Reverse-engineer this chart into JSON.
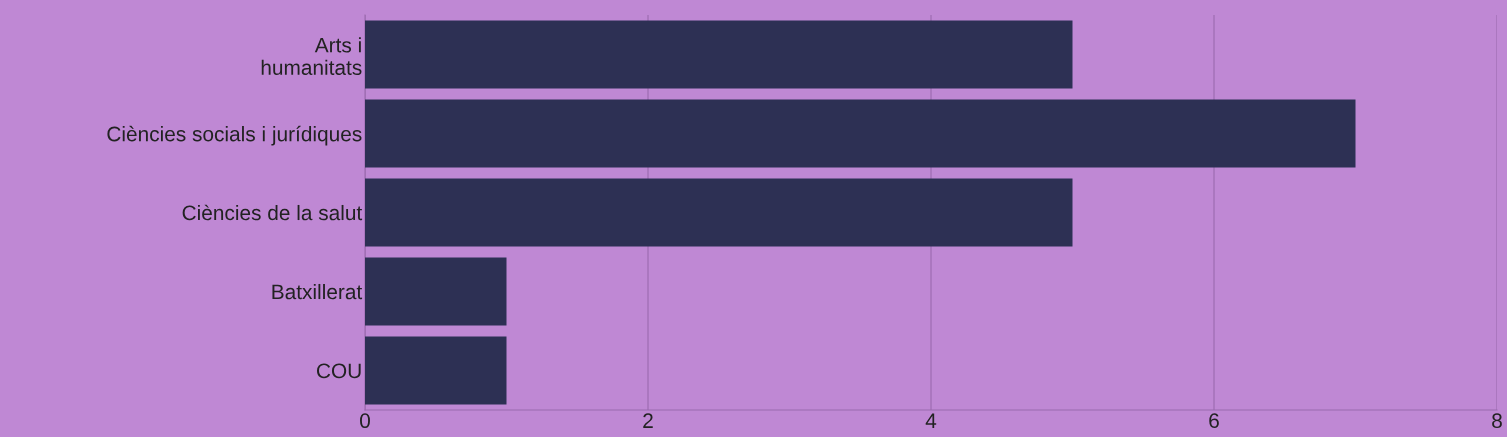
{
  "chart_data": {
    "type": "bar",
    "orientation": "horizontal",
    "categories": [
      "Arts i\nhumanitats",
      "Ciències socials i jurídiques",
      "Ciències de la salut",
      "Batxillerat",
      "COU"
    ],
    "values": [
      5,
      7,
      5,
      1,
      1
    ],
    "color": "#2d3054",
    "xlim": [
      0,
      8
    ],
    "xticks": [
      0,
      2,
      4,
      6,
      8
    ],
    "grid": "x"
  }
}
